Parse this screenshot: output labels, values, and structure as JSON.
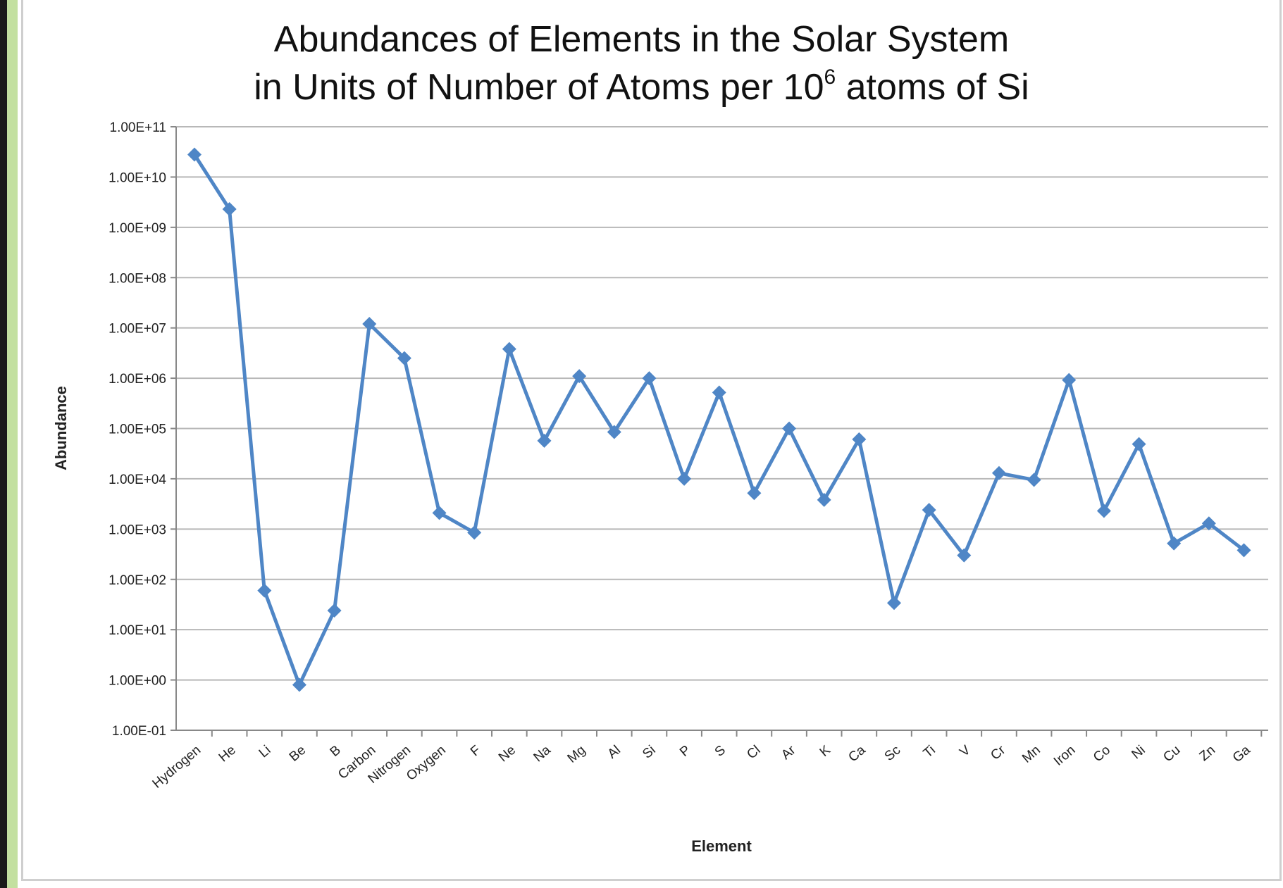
{
  "colors": {
    "series": "#4f86c6",
    "gridline": "#b8b8b8",
    "left_accent": "#c3e0a0",
    "left_edge": "#1a1a1a"
  },
  "chart_data": {
    "type": "line",
    "title_line1": "Abundances of Elements in the Solar System",
    "title_line2_prefix": "in Units of Number of Atoms per 10",
    "title_line2_superscript": "6",
    "title_line2_suffix": " atoms of Si",
    "xlabel": "Element",
    "ylabel": "Abundance",
    "y_scale": "log",
    "ylim": [
      0.1,
      100000000000
    ],
    "y_ticks": [
      0.1,
      1,
      10,
      100,
      1000,
      10000,
      100000,
      1000000,
      10000000,
      100000000,
      1000000000,
      10000000000,
      100000000000
    ],
    "y_tick_labels": [
      "1.00E-01",
      "1.00E+00",
      "1.00E+01",
      "1.00E+02",
      "1.00E+03",
      "1.00E+04",
      "1.00E+05",
      "1.00E+06",
      "1.00E+07",
      "1.00E+08",
      "1.00E+09",
      "1.00E+10",
      "1.00E+11"
    ],
    "grid": true,
    "marker": "diamond",
    "categories": [
      "Hydrogen",
      "He",
      "Li",
      "Be",
      "B",
      "Carbon",
      "Nitrogen",
      "Oxygen",
      "F",
      "Ne",
      "Na",
      "Mg",
      "Al",
      "Si",
      "P",
      "S",
      "Cl",
      "Ar",
      "K",
      "Ca",
      "Sc",
      "Ti",
      "V",
      "Cr",
      "Mn",
      "Iron",
      "Co",
      "Ni",
      "Cu",
      "Zn",
      "Ga"
    ],
    "series": [
      {
        "values": [
          28000000000,
          2300000000,
          60,
          0.8,
          24,
          12000000,
          2500000,
          2100,
          850,
          3800000,
          57000,
          1100000,
          85000,
          1000000,
          10000,
          520000,
          5200,
          100000,
          3800,
          61000,
          34,
          2400,
          300,
          13000,
          9500,
          920000,
          2300,
          49000,
          520,
          1300,
          380
        ]
      }
    ]
  }
}
